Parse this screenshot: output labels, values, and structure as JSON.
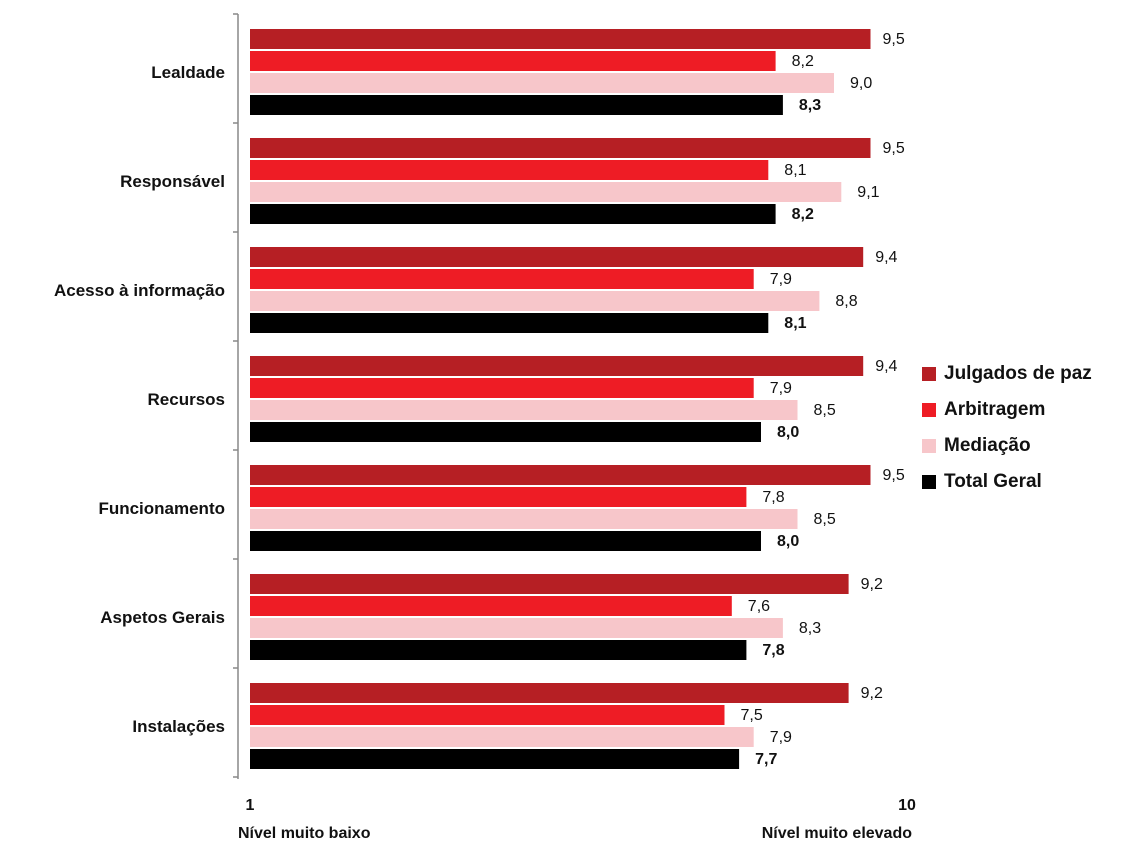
{
  "chart_data": {
    "type": "bar",
    "orientation": "horizontal",
    "categories": [
      "Lealdade",
      "Responsável",
      "Acesso à informação",
      "Recursos",
      "Funcionamento",
      "Aspetos Gerais",
      "Instalações"
    ],
    "series": [
      {
        "name": "Julgados de paz",
        "color": "#b61f24",
        "values": [
          9.5,
          9.5,
          9.4,
          9.4,
          9.5,
          9.2,
          9.2
        ],
        "labels": [
          "9,5",
          "9,5",
          "9,4",
          "9,4",
          "9,5",
          "9,2",
          "9,2"
        ]
      },
      {
        "name": "Arbitragem",
        "color": "#ee1c25",
        "values": [
          8.2,
          8.1,
          7.9,
          7.9,
          7.8,
          7.6,
          7.5
        ],
        "labels": [
          "8,2",
          "8,1",
          "7,9",
          "7,9",
          "7,8",
          "7,6",
          "7,5"
        ]
      },
      {
        "name": "Mediação",
        "color": "#f7c6ca",
        "values": [
          9.0,
          9.1,
          8.8,
          8.5,
          8.5,
          8.3,
          7.9
        ],
        "labels": [
          "9,0",
          "9,1",
          "8,8",
          "8,5",
          "8,5",
          "8,3",
          "7,9"
        ]
      },
      {
        "name": "Total Geral",
        "color": "#000000",
        "values": [
          8.3,
          8.2,
          8.1,
          8.0,
          8.0,
          7.8,
          7.7
        ],
        "labels": [
          "8,3",
          "8,2",
          "8,1",
          "8,0",
          "8,0",
          "7,8",
          "7,7"
        ]
      }
    ],
    "xlim": [
      1,
      10
    ],
    "x_ticks": [
      "1",
      "10"
    ],
    "x_axis_labels": {
      "min": "Nível muito baixo",
      "max": "Nível muito elevado"
    },
    "legend_position": "right",
    "grid": false
  }
}
